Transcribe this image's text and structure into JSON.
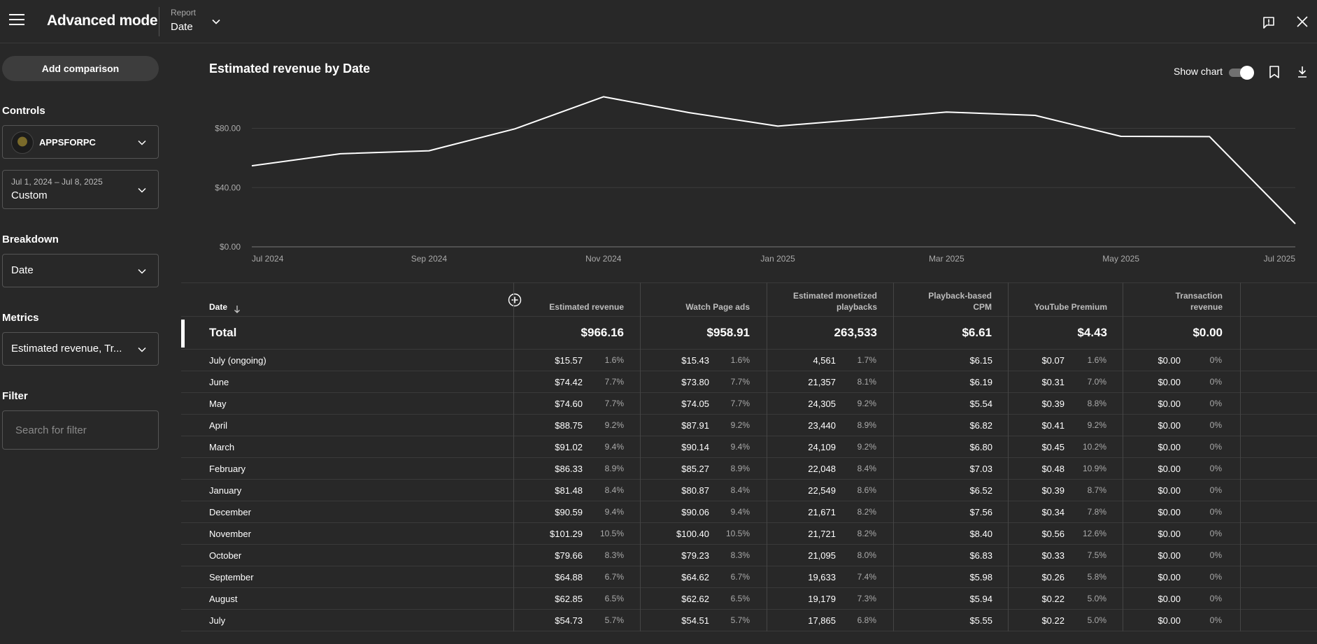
{
  "header": {
    "title": "Advanced mode",
    "report_label": "Report",
    "report_value": "Date"
  },
  "sidebar": {
    "add_comparison": "Add comparison",
    "controls_label": "Controls",
    "channel_name": "APPSFORPC",
    "date_range": "Jul 1, 2024 – Jul 8, 2025",
    "date_preset": "Custom",
    "breakdown_label": "Breakdown",
    "breakdown_value": "Date",
    "metrics_label": "Metrics",
    "metrics_value": "Estimated revenue, Tr...",
    "filter_label": "Filter",
    "filter_placeholder": "Search for filter"
  },
  "chart_header": {
    "title": "Estimated revenue by Date",
    "show_chart_label": "Show chart",
    "show_chart_on": true
  },
  "chart_data": {
    "type": "line",
    "title": "Estimated revenue by Date",
    "x": [
      "2024-07-01",
      "2024-08-01",
      "2024-09-01",
      "2024-10-01",
      "2024-11-01",
      "2024-12-01",
      "2025-01-01",
      "2025-02-01",
      "2025-03-01",
      "2025-04-01",
      "2025-05-01",
      "2025-06-01",
      "2025-07-01"
    ],
    "values": [
      54.73,
      62.85,
      64.88,
      79.66,
      101.29,
      90.59,
      81.48,
      86.33,
      91.02,
      88.75,
      74.6,
      74.42,
      15.57
    ],
    "x_tick_labels": [
      "Jul 2024",
      "Sep 2024",
      "Nov 2024",
      "Jan 2025",
      "Mar 2025",
      "May 2025",
      "Jul 2025"
    ],
    "y_tick_labels": [
      "$0.00",
      "$40.00",
      "$80.00"
    ],
    "y_ticks": [
      0,
      40,
      80
    ],
    "ylim": [
      0,
      110
    ],
    "grid": true,
    "color": "#ffffff"
  },
  "table": {
    "columns": [
      {
        "key": "date",
        "label": "Date"
      },
      {
        "key": "revenue",
        "label": "Estimated revenue"
      },
      {
        "key": "watch",
        "label": "Watch Page ads"
      },
      {
        "key": "playbacks",
        "label": "Estimated monetized playbacks"
      },
      {
        "key": "cpm",
        "label": "Playback-based CPM"
      },
      {
        "key": "premium",
        "label": "YouTube Premium"
      },
      {
        "key": "transaction",
        "label": "Transaction revenue"
      }
    ],
    "total": {
      "label": "Total",
      "revenue": "$966.16",
      "watch": "$958.91",
      "playbacks": "263,533",
      "cpm": "$6.61",
      "premium": "$4.43",
      "transaction": "$0.00"
    },
    "rows": [
      {
        "label": "July (ongoing)",
        "revenue": "$15.57",
        "revenue_pct": "1.6%",
        "watch": "$15.43",
        "watch_pct": "1.6%",
        "playbacks": "4,561",
        "playbacks_pct": "1.7%",
        "cpm": "$6.15",
        "premium": "$0.07",
        "premium_pct": "1.6%",
        "transaction": "$0.00",
        "transaction_pct": "0%"
      },
      {
        "label": "June",
        "revenue": "$74.42",
        "revenue_pct": "7.7%",
        "watch": "$73.80",
        "watch_pct": "7.7%",
        "playbacks": "21,357",
        "playbacks_pct": "8.1%",
        "cpm": "$6.19",
        "premium": "$0.31",
        "premium_pct": "7.0%",
        "transaction": "$0.00",
        "transaction_pct": "0%"
      },
      {
        "label": "May",
        "revenue": "$74.60",
        "revenue_pct": "7.7%",
        "watch": "$74.05",
        "watch_pct": "7.7%",
        "playbacks": "24,305",
        "playbacks_pct": "9.2%",
        "cpm": "$5.54",
        "premium": "$0.39",
        "premium_pct": "8.8%",
        "transaction": "$0.00",
        "transaction_pct": "0%"
      },
      {
        "label": "April",
        "revenue": "$88.75",
        "revenue_pct": "9.2%",
        "watch": "$87.91",
        "watch_pct": "9.2%",
        "playbacks": "23,440",
        "playbacks_pct": "8.9%",
        "cpm": "$6.82",
        "premium": "$0.41",
        "premium_pct": "9.2%",
        "transaction": "$0.00",
        "transaction_pct": "0%"
      },
      {
        "label": "March",
        "revenue": "$91.02",
        "revenue_pct": "9.4%",
        "watch": "$90.14",
        "watch_pct": "9.4%",
        "playbacks": "24,109",
        "playbacks_pct": "9.2%",
        "cpm": "$6.80",
        "premium": "$0.45",
        "premium_pct": "10.2%",
        "transaction": "$0.00",
        "transaction_pct": "0%"
      },
      {
        "label": "February",
        "revenue": "$86.33",
        "revenue_pct": "8.9%",
        "watch": "$85.27",
        "watch_pct": "8.9%",
        "playbacks": "22,048",
        "playbacks_pct": "8.4%",
        "cpm": "$7.03",
        "premium": "$0.48",
        "premium_pct": "10.9%",
        "transaction": "$0.00",
        "transaction_pct": "0%"
      },
      {
        "label": "January",
        "revenue": "$81.48",
        "revenue_pct": "8.4%",
        "watch": "$80.87",
        "watch_pct": "8.4%",
        "playbacks": "22,549",
        "playbacks_pct": "8.6%",
        "cpm": "$6.52",
        "premium": "$0.39",
        "premium_pct": "8.7%",
        "transaction": "$0.00",
        "transaction_pct": "0%"
      },
      {
        "label": "December",
        "revenue": "$90.59",
        "revenue_pct": "9.4%",
        "watch": "$90.06",
        "watch_pct": "9.4%",
        "playbacks": "21,671",
        "playbacks_pct": "8.2%",
        "cpm": "$7.56",
        "premium": "$0.34",
        "premium_pct": "7.8%",
        "transaction": "$0.00",
        "transaction_pct": "0%"
      },
      {
        "label": "November",
        "revenue": "$101.29",
        "revenue_pct": "10.5%",
        "watch": "$100.40",
        "watch_pct": "10.5%",
        "playbacks": "21,721",
        "playbacks_pct": "8.2%",
        "cpm": "$8.40",
        "premium": "$0.56",
        "premium_pct": "12.6%",
        "transaction": "$0.00",
        "transaction_pct": "0%"
      },
      {
        "label": "October",
        "revenue": "$79.66",
        "revenue_pct": "8.3%",
        "watch": "$79.23",
        "watch_pct": "8.3%",
        "playbacks": "21,095",
        "playbacks_pct": "8.0%",
        "cpm": "$6.83",
        "premium": "$0.33",
        "premium_pct": "7.5%",
        "transaction": "$0.00",
        "transaction_pct": "0%"
      },
      {
        "label": "September",
        "revenue": "$64.88",
        "revenue_pct": "6.7%",
        "watch": "$64.62",
        "watch_pct": "6.7%",
        "playbacks": "19,633",
        "playbacks_pct": "7.4%",
        "cpm": "$5.98",
        "premium": "$0.26",
        "premium_pct": "5.8%",
        "transaction": "$0.00",
        "transaction_pct": "0%"
      },
      {
        "label": "August",
        "revenue": "$62.85",
        "revenue_pct": "6.5%",
        "watch": "$62.62",
        "watch_pct": "6.5%",
        "playbacks": "19,179",
        "playbacks_pct": "7.3%",
        "cpm": "$5.94",
        "premium": "$0.22",
        "premium_pct": "5.0%",
        "transaction": "$0.00",
        "transaction_pct": "0%"
      },
      {
        "label": "July",
        "revenue": "$54.73",
        "revenue_pct": "5.7%",
        "watch": "$54.51",
        "watch_pct": "5.7%",
        "playbacks": "17,865",
        "playbacks_pct": "6.8%",
        "cpm": "$5.55",
        "premium": "$0.22",
        "premium_pct": "5.0%",
        "transaction": "$0.00",
        "transaction_pct": "0%"
      }
    ]
  },
  "icons": {
    "menu": "menu-icon",
    "report_chevron": "chevron-down-icon",
    "feedback": "feedback-icon",
    "close": "close-icon",
    "bookmark": "bookmark-icon",
    "download": "download-icon",
    "add_column": "add-circle-icon",
    "sort": "arrow-down-icon"
  }
}
